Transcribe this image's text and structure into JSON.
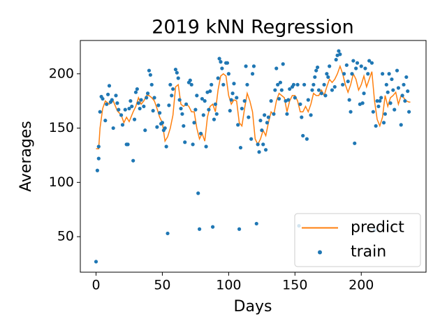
{
  "chart_data": {
    "type": "line",
    "title": "2019 kNN Regression",
    "x_label": "Days",
    "y_label": "Averages",
    "xlim": [
      -11.85,
      248.85
    ],
    "ylim": [
      17.3,
      230.7
    ],
    "xticks": [
      0,
      50,
      100,
      150,
      200
    ],
    "yticks": [
      50,
      100,
      150,
      200
    ],
    "grid": false,
    "legend": "lower right",
    "series": [
      {
        "name": "predict",
        "type": "line",
        "color": "#ff7f0e",
        "x": [
          0,
          2,
          3,
          5,
          7,
          10,
          13,
          16,
          19,
          21,
          23,
          25,
          28,
          30,
          32,
          34,
          36,
          38,
          40,
          42,
          44,
          46,
          48,
          50,
          52,
          54,
          56,
          58,
          60,
          62,
          64,
          66,
          68,
          70,
          72,
          74,
          76,
          78,
          80,
          82,
          84,
          86,
          88,
          90,
          92,
          94,
          96,
          98,
          100,
          102,
          104,
          106,
          108,
          110,
          112,
          114,
          116,
          118,
          120,
          122,
          124,
          126,
          128,
          130,
          132,
          134,
          136,
          138,
          140,
          142,
          144,
          146,
          148,
          150,
          152,
          154,
          156,
          158,
          160,
          162,
          164,
          166,
          168,
          170,
          172,
          174,
          176,
          178,
          180,
          182,
          184,
          186,
          188,
          190,
          192,
          194,
          196,
          198,
          200,
          202,
          204,
          206,
          208,
          210,
          212,
          214,
          216,
          218,
          220,
          222,
          224,
          226,
          228,
          230,
          232,
          234,
          236,
          237
        ],
        "values": [
          131,
          131,
          150,
          168,
          175,
          172,
          175,
          166,
          162,
          155,
          160,
          156,
          165,
          170,
          178,
          172,
          175,
          180,
          180,
          178,
          175,
          168,
          160,
          155,
          138,
          142,
          150,
          162,
          188,
          190,
          172,
          170,
          172,
          170,
          165,
          165,
          150,
          140,
          145,
          138,
          160,
          170,
          172,
          165,
          185,
          198,
          200,
          198,
          180,
          172,
          176,
          175,
          155,
          152,
          168,
          182,
          175,
          165,
          140,
          135,
          140,
          148,
          143,
          155,
          165,
          162,
          175,
          182,
          180,
          178,
          165,
          175,
          180,
          180,
          175,
          165,
          165,
          170,
          165,
          172,
          182,
          180,
          180,
          185,
          180,
          188,
          195,
          192,
          195,
          200,
          207,
          200,
          190,
          183,
          190,
          200,
          195,
          185,
          190,
          198,
          188,
          195,
          202,
          175,
          158,
          152,
          160,
          180,
          170,
          178,
          180,
          183,
          172,
          180,
          178,
          175,
          174,
          174
        ]
      },
      {
        "name": "train",
        "type": "scatter",
        "color": "#1f77b4",
        "x": [
          0,
          1,
          2,
          2,
          3,
          4,
          5,
          7,
          8,
          9,
          10,
          11,
          12,
          13,
          15,
          16,
          17,
          19,
          20,
          22,
          23,
          24,
          25,
          26,
          27,
          28,
          29,
          30,
          31,
          32,
          33,
          34,
          36,
          37,
          38,
          39,
          40,
          41,
          42,
          43,
          44,
          46,
          47,
          48,
          49,
          50,
          51,
          52,
          53,
          54,
          55,
          56,
          57,
          58,
          60,
          61,
          62,
          63,
          64,
          65,
          66,
          67,
          68,
          70,
          71,
          72,
          73,
          74,
          75,
          76,
          77,
          78,
          79,
          80,
          81,
          82,
          83,
          84,
          85,
          86,
          87,
          88,
          89,
          90,
          91,
          92,
          93,
          94,
          95,
          96,
          98,
          99,
          100,
          101,
          102,
          103,
          104,
          106,
          107,
          108,
          109,
          110,
          112,
          113,
          114,
          115,
          117,
          118,
          119,
          121,
          122,
          123,
          124,
          125,
          126,
          127,
          128,
          129,
          130,
          132,
          134,
          135,
          136,
          137,
          138,
          139,
          140,
          141,
          143,
          144,
          145,
          146,
          148,
          149,
          150,
          152,
          153,
          154,
          155,
          156,
          157,
          159,
          160,
          162,
          163,
          164,
          165,
          166,
          167,
          168,
          170,
          172,
          173,
          174,
          175,
          176,
          178,
          180,
          181,
          182,
          183,
          184,
          186,
          187,
          189,
          190,
          191,
          192,
          193,
          194,
          195,
          196,
          197,
          199,
          200,
          201,
          202,
          203,
          205,
          206,
          208,
          209,
          210,
          211,
          212,
          213,
          214,
          215,
          216,
          217,
          218,
          219,
          220,
          221,
          222,
          223,
          224,
          225,
          227,
          228,
          230,
          231,
          232,
          233,
          234,
          235,
          236
        ],
        "values": [
          27,
          111,
          133,
          122,
          165,
          179,
          177,
          157,
          172,
          181,
          189,
          174,
          176,
          150,
          180,
          173,
          167,
          162,
          153,
          167,
          135,
          135,
          168,
          175,
          170,
          120,
          158,
          183,
          186,
          173,
          168,
          176,
          170,
          148,
          178,
          182,
          203,
          199,
          190,
          166,
          178,
          151,
          171,
          164,
          154,
          155,
          148,
          150,
          133,
          53,
          171,
          190,
          180,
          186,
          204,
          201,
          196,
          176,
          168,
          163,
          152,
          137,
          172,
          192,
          194,
          190,
          135,
          155,
          167,
          180,
          90,
          57,
          145,
          177,
          162,
          175,
          133,
          183,
          167,
          184,
          190,
          59,
          158,
          172,
          163,
          196,
          214,
          211,
          205,
          190,
          210,
          210,
          200,
          166,
          176,
          182,
          191,
          178,
          153,
          57,
          132,
          168,
          175,
          207,
          190,
          160,
          140,
          200,
          207,
          62,
          135,
          128,
          157,
          148,
          135,
          162,
          130,
          155,
          160,
          175,
          163,
          185,
          205,
          190,
          177,
          192,
          185,
          209,
          175,
          163,
          176,
          186,
          188,
          190,
          178,
          190,
          60,
          172,
          160,
          143,
          190,
          140,
          176,
          162,
          185,
          190,
          197,
          203,
          206,
          185,
          182,
          190,
          180,
          200,
          197,
          207,
          185,
          188,
          213,
          217,
          221,
          218,
          190,
          200,
          208,
          193,
          176,
          165,
          200,
          212,
          136,
          205,
          210,
          172,
          207,
          173,
          182,
          205,
          200,
          212,
          210,
          165,
          56,
          152,
          175,
          170,
          175,
          178,
          200,
          155,
          163,
          190,
          183,
          200,
          173,
          195,
          185,
          167,
          203,
          187,
          153,
          180,
          190,
          175,
          197,
          184,
          165
        ]
      }
    ]
  }
}
